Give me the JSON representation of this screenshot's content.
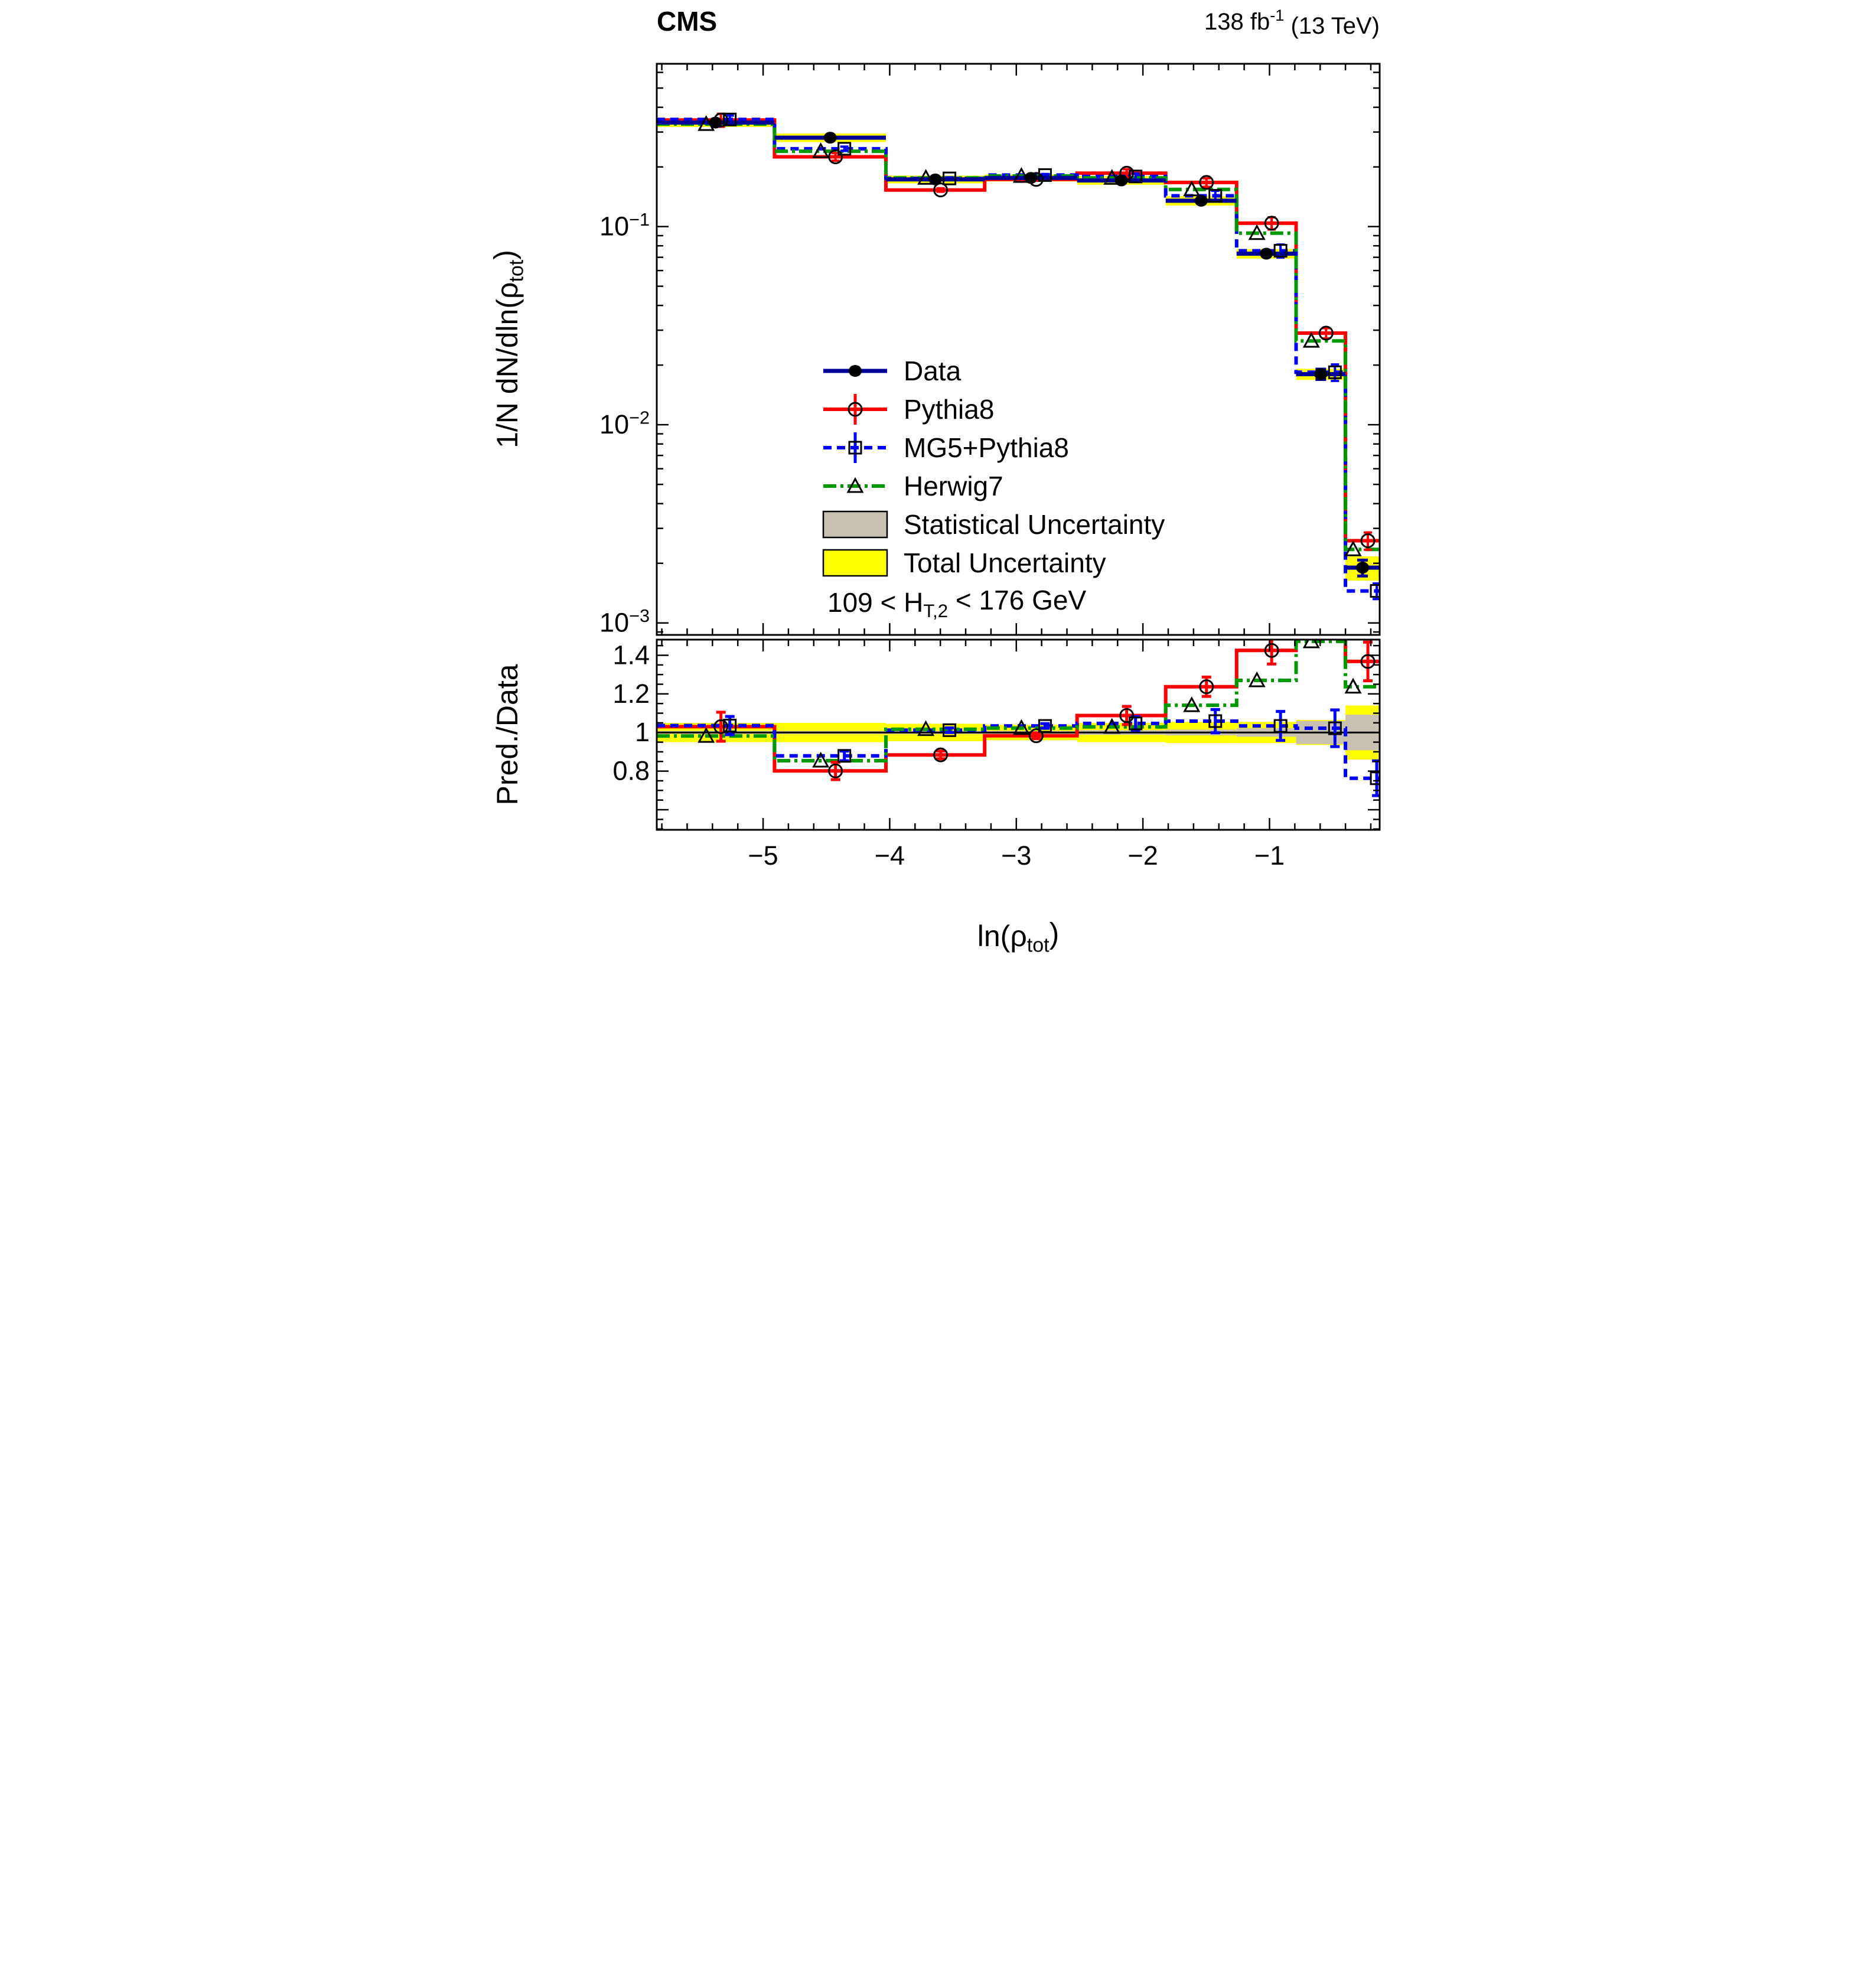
{
  "header": {
    "experiment": "CMS",
    "luminosity": "138 fb-1 (13 TeV)",
    "luminosity_parts": [
      {
        "t": "138 fb"
      },
      {
        "t": "-1",
        "sup": true
      },
      {
        "t": " (13 TeV)"
      }
    ]
  },
  "titles": {
    "y_top": "1/N dN/dln(p_tot)",
    "y_top_parts": [
      {
        "t": "1/N dN/dln(ρ"
      },
      {
        "t": "tot",
        "sub": true
      },
      {
        "t": ")"
      }
    ],
    "y_ratio": "Pred./Data",
    "x": "ln(p_tot)",
    "x_parts": [
      {
        "t": "ln(ρ"
      },
      {
        "t": "tot",
        "sub": true
      },
      {
        "t": ")"
      }
    ],
    "selection": "109 < H_T,2 < 176 GeV",
    "selection_parts": [
      {
        "t": "109 < H"
      },
      {
        "t": "T,2",
        "sub": true
      },
      {
        "t": " < 176 GeV"
      }
    ]
  },
  "legend": [
    {
      "id": "data",
      "label": "Data",
      "color": "#000099",
      "line": "solid",
      "marker": "filled-circle"
    },
    {
      "id": "pythia8",
      "label": "Pythia8",
      "color": "#ff0000",
      "line": "solid",
      "marker": "open-circle"
    },
    {
      "id": "mg5",
      "label": "MG5+Pythia8",
      "color": "#0000ff",
      "line": "dashed",
      "marker": "open-square"
    },
    {
      "id": "herwig7",
      "label": "Herwig7",
      "color": "#009900",
      "line": "dashdot",
      "marker": "open-triangle"
    },
    {
      "id": "stat",
      "label": "Statistical Uncertainty",
      "color": "#c8c0b0",
      "marker": "box"
    },
    {
      "id": "total",
      "label": "Total Uncertainty",
      "color": "#ffff00",
      "marker": "box"
    }
  ],
  "axes": {
    "x": {
      "lim": [
        -5.84,
        -0.13
      ],
      "ticks": [
        -5,
        -4,
        -3,
        -2,
        -1
      ],
      "tick_labels": [
        "−5",
        "−4",
        "−3",
        "−2",
        "−1"
      ],
      "minor_step": 0.2
    },
    "y_top": {
      "lim": [
        0.00087,
        0.663
      ],
      "scale": "log",
      "tick_labels": [
        {
          "v": 0.1,
          "parts": [
            {
              "t": "10"
            },
            {
              "t": "−1",
              "sup": true
            }
          ]
        },
        {
          "v": 0.01,
          "parts": [
            {
              "t": "10"
            },
            {
              "t": "−2",
              "sup": true
            }
          ]
        },
        {
          "v": 0.001,
          "parts": [
            {
              "t": "10"
            },
            {
              "t": "−3",
              "sup": true
            }
          ]
        }
      ]
    },
    "y_ratio": {
      "lim": [
        0.496,
        1.481
      ],
      "ticks": [
        0.8,
        1.0,
        1.2,
        1.4
      ],
      "tick_labels": [
        "0.8",
        "1",
        "1.2",
        "1.4"
      ],
      "minor_step": 0.05
    }
  },
  "chart_data": {
    "type": "bar",
    "subtype": "step-histogram-with-ratio",
    "title": "CMS, 138 fb-1 (13 TeV), 109 < H_T,2 < 176 GeV",
    "xlabel": "ln(p_tot)",
    "ylabel_top": "1/N dN/dln(p_tot)",
    "ylabel_ratio": "Pred./Data",
    "x_bin_edges": [
      -5.84,
      -4.91,
      -4.03,
      -3.25,
      -2.52,
      -1.82,
      -1.26,
      -0.79,
      -0.4,
      -0.13
    ],
    "series": [
      {
        "name": "Data",
        "role": "data",
        "color": "#000099",
        "marker": "filled-circle",
        "values": [
          0.335,
          0.281,
          0.173,
          0.176,
          0.171,
          0.135,
          0.073,
          0.018,
          0.0019
        ],
        "stat_err_frac": [
          0.008,
          0.008,
          0.008,
          0.008,
          0.012,
          0.015,
          0.022,
          0.06,
          0.092
        ]
      },
      {
        "name": "Pythia8",
        "role": "model",
        "color": "#ff0000",
        "line": "solid",
        "marker": "open-circle",
        "values": [
          0.345,
          0.225,
          0.153,
          0.173,
          0.186,
          0.167,
          0.104,
          0.029,
          0.0026
        ],
        "ratio": [
          1.03,
          0.801,
          0.884,
          0.983,
          1.088,
          1.237,
          1.425,
          1.611,
          1.368
        ],
        "ratio_err": [
          0.075,
          0.045,
          0.02,
          0.015,
          0.047,
          0.05,
          0.07,
          0.06,
          0.1
        ]
      },
      {
        "name": "MG5+Pythia8",
        "role": "model",
        "color": "#0000ff",
        "line": "dashed",
        "marker": "open-square",
        "values": [
          0.347,
          0.247,
          0.175,
          0.182,
          0.179,
          0.143,
          0.0755,
          0.0184,
          0.00145
        ],
        "ratio": [
          1.036,
          0.879,
          1.012,
          1.034,
          1.047,
          1.059,
          1.034,
          1.022,
          0.763
        ],
        "ratio_err": [
          0.047,
          0.025,
          0.012,
          0.012,
          0.035,
          0.06,
          0.075,
          0.095,
          0.09
        ]
      },
      {
        "name": "Herwig7",
        "role": "model",
        "color": "#009900",
        "line": "dashdot",
        "marker": "open-triangle",
        "values": [
          0.329,
          0.24,
          0.176,
          0.18,
          0.176,
          0.154,
          0.0927,
          0.0265,
          0.00235
        ],
        "ratio": [
          0.982,
          0.854,
          1.017,
          1.023,
          1.029,
          1.141,
          1.27,
          1.472,
          1.237
        ],
        "ratio_err": null
      }
    ],
    "bands": {
      "total_label": "Total Uncertainty",
      "total_color": "#ffff00",
      "total_frac": [
        0.05,
        0.05,
        0.045,
        0.04,
        0.05,
        0.055,
        0.055,
        0.065,
        0.14
      ],
      "stat_label": "Statistical Uncertainty",
      "stat_color": "#c8c0b0",
      "stat_frac": [
        0.008,
        0.008,
        0.008,
        0.008,
        0.012,
        0.015,
        0.022,
        0.06,
        0.092
      ]
    },
    "top_ylim": [
      0.00087,
      0.663
    ],
    "ratio_ylim": [
      0.496,
      1.481
    ],
    "xlim": [
      -5.84,
      -0.13
    ],
    "grid": false,
    "legend_position": "center-left inside top panel"
  }
}
